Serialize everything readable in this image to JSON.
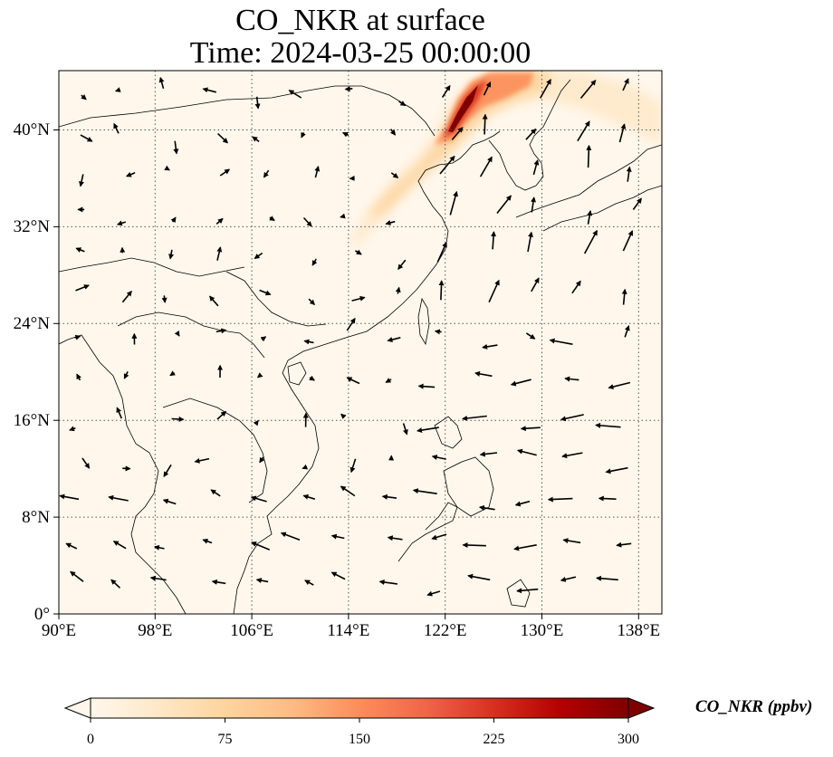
{
  "title": {
    "line1": "CO_NKR at surface",
    "line2": "Time: 2024-03-25 00:00:00"
  },
  "map": {
    "lon_range": [
      90,
      139
    ],
    "lat_range": [
      0,
      44.5
    ],
    "x_ticks": [
      "90°E",
      "98°E",
      "106°E",
      "114°E",
      "122°E",
      "130°E",
      "138°E"
    ],
    "y_ticks": [
      "0°",
      "8°N",
      "16°N",
      "24°N",
      "32°N",
      "40°N"
    ],
    "gridlines": true,
    "gridline_style": "dotted",
    "overlay": "wind vectors (arrows)",
    "plume_region": "Northeast China / Yellow Sea, highest near 123°E 41°N"
  },
  "colorbar": {
    "label": "CO_NKR (ppbv)",
    "min": 0,
    "max": 300,
    "ticks": [
      "0",
      "75",
      "150",
      "225",
      "300"
    ],
    "extend": "both",
    "colormap": "OrRd",
    "colors": [
      "#fff7ec",
      "#fee8c8",
      "#fdd49e",
      "#fdbb84",
      "#fc8d59",
      "#ef6548",
      "#d7301f",
      "#b30000",
      "#7f0000"
    ]
  }
}
